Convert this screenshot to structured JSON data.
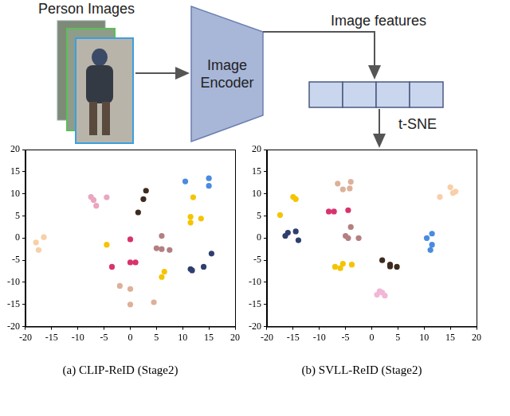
{
  "diagram": {
    "input_label": "Person Images",
    "encoder_label": "Image Encoder",
    "features_label": "Image features",
    "projection_label": "t-SNE"
  },
  "chart_data": [
    {
      "type": "scatter",
      "title": "(a) CLIP-ReID (Stage2)",
      "xlim": [
        -20,
        20
      ],
      "ylim": [
        -20,
        20
      ],
      "xticks": [
        -20,
        -15,
        -10,
        -5,
        0,
        5,
        10,
        15,
        20
      ],
      "yticks": [
        -20,
        -15,
        -10,
        -5,
        0,
        5,
        10,
        15,
        20
      ],
      "grid": false,
      "series": [
        {
          "color": "#f8cfa8",
          "x": [
            -18,
            -16.5,
            -17.5
          ],
          "y": [
            -1,
            0.2,
            -2.7
          ]
        },
        {
          "color": "#eaa5c0",
          "x": [
            -7.5,
            -6.5,
            -4.5,
            -7
          ],
          "y": [
            9.3,
            7.3,
            9.2,
            8.6
          ]
        },
        {
          "color": "#3d2b1f",
          "x": [
            3,
            2.5,
            1.5
          ],
          "y": [
            10.7,
            8.8,
            5.8
          ]
        },
        {
          "color": "#4a8be0",
          "x": [
            10.5,
            15,
            15
          ],
          "y": [
            12.8,
            13.5,
            11.8
          ]
        },
        {
          "color": "#f5c400",
          "x": [
            12,
            11.5,
            11.5,
            13.5,
            6.5,
            6,
            -4.5
          ],
          "y": [
            9.2,
            4.8,
            3.5,
            4.4,
            -7.6,
            -8.8,
            -1.5
          ]
        },
        {
          "color": "#2e3f6e",
          "x": [
            11.5,
            11.8,
            14,
            15.5
          ],
          "y": [
            -7,
            -7.3,
            -6.5,
            -3.5
          ]
        },
        {
          "color": "#d8336e",
          "x": [
            -3.5,
            0,
            0,
            1
          ],
          "y": [
            -6.5,
            -0.3,
            -5.5,
            -5.5
          ]
        },
        {
          "color": "#b47f80",
          "x": [
            6,
            6,
            7.5,
            5
          ],
          "y": [
            0.5,
            -2.5,
            -2.7,
            -2.3
          ]
        },
        {
          "color": "#deb09a",
          "x": [
            -2,
            0,
            0,
            4.5
          ],
          "y": [
            -10.8,
            -11.5,
            -15,
            -14.5
          ]
        }
      ]
    },
    {
      "type": "scatter",
      "title": "(b) SVLL-ReID (Stage2)",
      "xlim": [
        -20,
        20
      ],
      "ylim": [
        -20,
        20
      ],
      "xticks": [
        -20,
        -15,
        -10,
        -5,
        0,
        5,
        10,
        15,
        20
      ],
      "yticks": [
        -20,
        -15,
        -10,
        -5,
        0,
        5,
        10,
        15,
        20
      ],
      "grid": false,
      "series": [
        {
          "color": "#f8cfa8",
          "x": [
            15,
            16,
            13,
            15.5
          ],
          "y": [
            11.5,
            10.5,
            9.3,
            10.2
          ]
        },
        {
          "color": "#f5c400",
          "x": [
            -15,
            -14.5,
            -17.5,
            -7,
            -5.5,
            -6,
            -3.8
          ],
          "y": [
            9.3,
            8.8,
            5.2,
            -6.5,
            -5.8,
            -6.8,
            -6
          ]
        },
        {
          "color": "#2e3f6e",
          "x": [
            -16,
            -14.5,
            -16.5,
            -14
          ],
          "y": [
            1.2,
            1.5,
            0.5,
            -0.5
          ]
        },
        {
          "color": "#d8336e",
          "x": [
            -8.2,
            -7.2,
            -4.5
          ],
          "y": [
            6,
            6,
            6.3
          ]
        },
        {
          "color": "#deb09a",
          "x": [
            -6.5,
            -4,
            -5.5,
            -4.2
          ],
          "y": [
            12.3,
            12.7,
            11,
            11.2
          ]
        },
        {
          "color": "#b47f80",
          "x": [
            -4,
            -4.5,
            -2.5,
            -5
          ],
          "y": [
            2.5,
            0,
            0,
            0.5
          ]
        },
        {
          "color": "#3d2b1f",
          "x": [
            2,
            3.5,
            4.8,
            3.5
          ],
          "y": [
            -5,
            -6,
            -6.5,
            -6.4
          ]
        },
        {
          "color": "#f2b6d6",
          "x": [
            1,
            2,
            2.5,
            1.5
          ],
          "y": [
            -12.8,
            -12.3,
            -13,
            -12
          ]
        },
        {
          "color": "#4a8be0",
          "x": [
            10.5,
            11.5,
            11.5,
            11.2
          ],
          "y": [
            0,
            1,
            -1.5,
            -2.7
          ]
        }
      ]
    }
  ]
}
